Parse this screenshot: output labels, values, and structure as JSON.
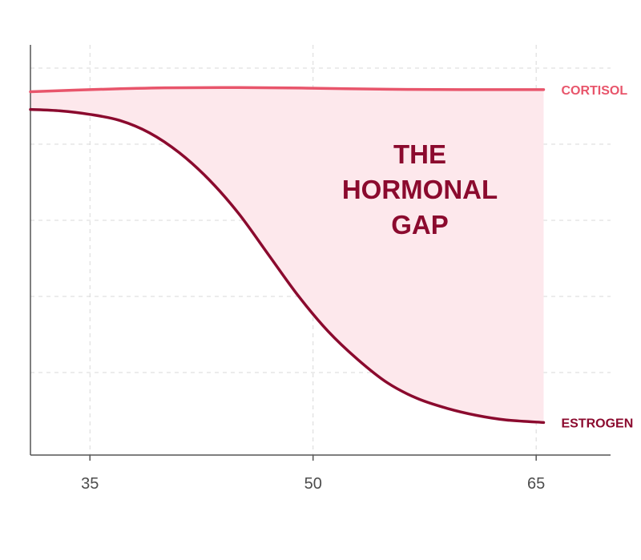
{
  "chart_data": {
    "type": "line",
    "title": "",
    "xlabel": "",
    "ylabel": "",
    "xlim": [
      31,
      70
    ],
    "ylim": [
      0,
      100
    ],
    "x_ticks": [
      35,
      50,
      65
    ],
    "x_tick_labels": [
      "35",
      "50",
      "65"
    ],
    "grid": true,
    "annotation": {
      "lines": [
        "THE",
        "HORMONAL",
        "GAP"
      ],
      "color": "#8b0a2e"
    },
    "fill_between": {
      "upper": "CORTISOL",
      "lower": "ESTROGEN",
      "color": "#fde8ec"
    },
    "series": [
      {
        "name": "CORTISOL",
        "color": "#e8556b",
        "x": [
          31,
          35,
          40,
          45,
          50,
          55,
          60,
          65.5
        ],
        "y": [
          94,
          94.6,
          95.1,
          95.2,
          95.0,
          94.7,
          94.6,
          94.6
        ]
      },
      {
        "name": "ESTROGEN",
        "color": "#8b0a2e",
        "x": [
          31,
          33,
          35,
          37,
          39,
          41,
          43,
          45,
          47,
          49,
          51,
          53,
          55,
          57,
          59,
          61,
          63,
          65.5
        ],
        "y": [
          89,
          88.6,
          87.6,
          85.9,
          82.4,
          76.8,
          69.2,
          59.6,
          48.0,
          36.4,
          26.4,
          18.4,
          11.8,
          7.4,
          4.6,
          2.6,
          1.3,
          0.6
        ]
      }
    ]
  }
}
